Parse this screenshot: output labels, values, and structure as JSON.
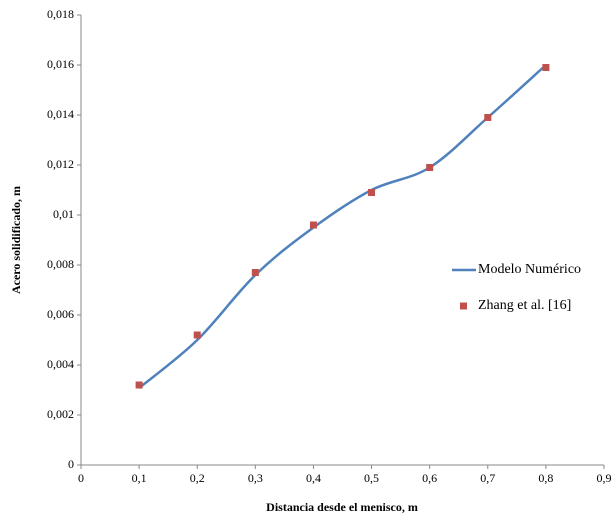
{
  "chart_data": {
    "type": "line",
    "x_label": "Distancia desde el menisco, m",
    "y_label": "Acero solidificado, m",
    "x": [
      0.1,
      0.2,
      0.3,
      0.4,
      0.5,
      0.6,
      0.7,
      0.8
    ],
    "series": [
      {
        "name": "Modelo Numérico",
        "color": "#4f81bd",
        "kind": "line",
        "smooth": true,
        "values": [
          0.00308,
          0.005,
          0.0076,
          0.0095,
          0.011,
          0.0119,
          0.0139,
          0.016
        ]
      },
      {
        "name": "Zhang et al. [16]",
        "color": "#c0504d",
        "kind": "scatter",
        "values": [
          0.0032,
          0.0052,
          0.0077,
          0.0096,
          0.0109,
          0.0119,
          0.0139,
          0.0159
        ]
      }
    ],
    "xlim": [
      0,
      0.9
    ],
    "xticks": [
      0,
      {
        "value": 0.1,
        "label": "0,1"
      },
      {
        "value": 0.2,
        "label": "0,2"
      },
      {
        "value": 0.3,
        "label": "0,3"
      },
      {
        "value": 0.4,
        "label": "0,4"
      },
      {
        "value": 0.5,
        "label": "0,5"
      },
      {
        "value": 0.6,
        "label": "0,6"
      },
      {
        "value": 0.7,
        "label": "0,7"
      },
      {
        "value": 0.8,
        "label": "0,8"
      },
      {
        "value": 0.9,
        "label": "0,9"
      }
    ],
    "ylim": [
      0,
      0.018
    ],
    "yticks": [
      0,
      {
        "value": 0.002,
        "label": "0,002"
      },
      {
        "value": 0.004,
        "label": "0,004"
      },
      {
        "value": 0.006,
        "label": "0,006"
      },
      {
        "value": 0.008,
        "label": "0,008"
      },
      {
        "value": 0.01,
        "label": "0,01"
      },
      {
        "value": 0.012,
        "label": "0,012"
      },
      {
        "value": 0.014,
        "label": "0,014"
      },
      {
        "value": 0.016,
        "label": "0,016"
      },
      {
        "value": 0.018,
        "label": "0,018"
      }
    ],
    "grid": false,
    "legend": "right"
  }
}
